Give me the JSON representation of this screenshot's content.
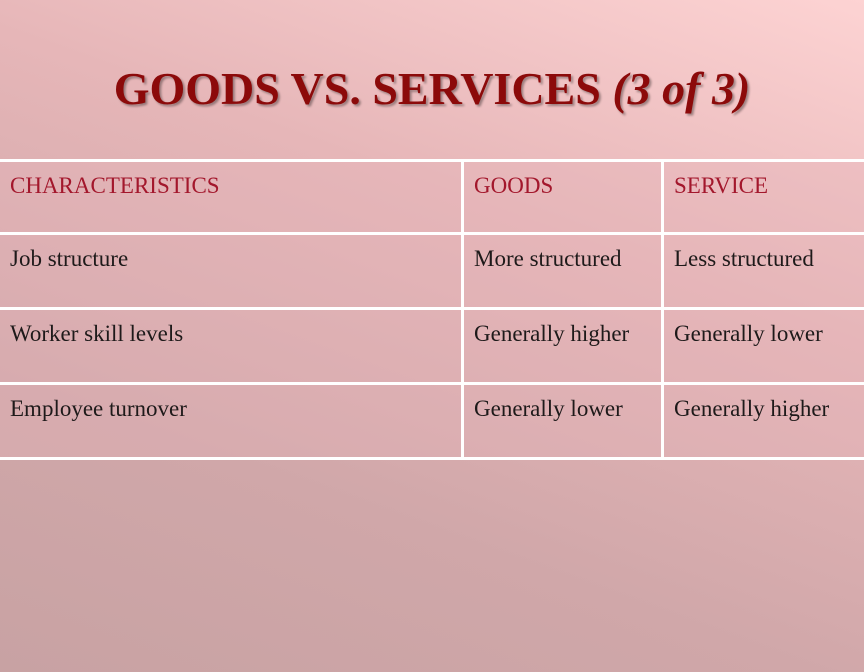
{
  "header": {
    "title": "GOODS VS. SERVICES",
    "part": "(3 of 3)"
  },
  "table": {
    "columns": [
      "CHARACTERISTICS",
      "GOODS",
      "SERVICE"
    ],
    "rows": [
      [
        "Job structure",
        "More structured",
        "Less structured"
      ],
      [
        "Worker skill levels",
        "Generally higher",
        "Generally lower"
      ],
      [
        "Employee turnover",
        "Generally lower",
        "Generally higher"
      ]
    ]
  }
}
